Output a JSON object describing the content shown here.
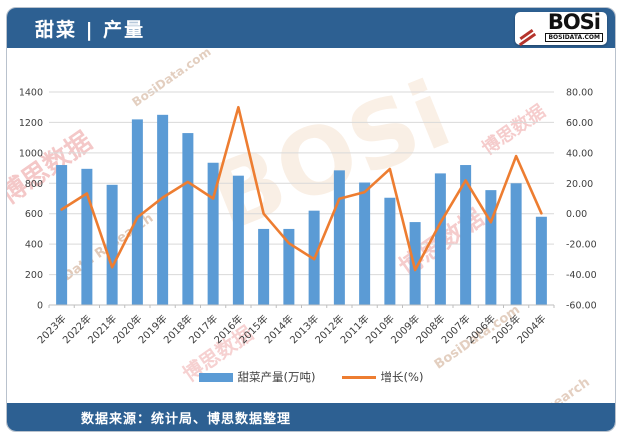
{
  "header": {
    "title": "甜菜 | 产量",
    "logo": {
      "text": "BOSi",
      "subtext": "BOSIDATA.COM"
    }
  },
  "footer": {
    "source": "数据来源：统计局、博思数据整理"
  },
  "watermarks": [
    "博思数据",
    "BosiData.com",
    "Data Research",
    "BOSi",
    "Research"
  ],
  "colors": {
    "header_bg": "#2d6092",
    "bar": "#5b9bd5",
    "line": "#ed7d31",
    "grid": "#d9d9d9",
    "axis_text": "#404040"
  },
  "chart_data": {
    "type": "bar",
    "title": "甜菜 | 产量",
    "categories": [
      "2023年",
      "2022年",
      "2021年",
      "2020年",
      "2019年",
      "2018年",
      "2017年",
      "2016年",
      "2015年",
      "2014年",
      "2013年",
      "2012年",
      "2011年",
      "2010年",
      "2009年",
      "2008年",
      "2007年",
      "2006年",
      "2005年",
      "2004年"
    ],
    "series": [
      {
        "name": "甜菜产量(万吨)",
        "type": "bar",
        "axis": "left",
        "color": "#5b9bd5",
        "values": [
          920,
          895,
          790,
          1220,
          1250,
          1130,
          935,
          850,
          500,
          500,
          620,
          885,
          805,
          705,
          545,
          865,
          920,
          755,
          800,
          580
        ]
      },
      {
        "name": "增长(%)",
        "type": "line",
        "axis": "right",
        "color": "#ed7d31",
        "values": [
          2.8,
          13.3,
          -35.2,
          -2.4,
          10.6,
          20.9,
          10.0,
          70.0,
          0.0,
          -19.4,
          -29.9,
          9.9,
          14.2,
          29.4,
          -37.0,
          -6.0,
          21.9,
          -5.6,
          37.9,
          0.3
        ]
      }
    ],
    "left_axis": {
      "min": 0,
      "max": 1400,
      "step": 200,
      "tick_labels": [
        "0",
        "200",
        "400",
        "600",
        "800",
        "1000",
        "1200",
        "1400"
      ]
    },
    "right_axis": {
      "min": -60,
      "max": 80,
      "step": 20,
      "tick_labels": [
        "-60.00",
        "-40.00",
        "-20.00",
        "0.00",
        "20.00",
        "40.00",
        "60.00",
        "80.00"
      ]
    },
    "grid": true,
    "legend_position": "bottom"
  }
}
